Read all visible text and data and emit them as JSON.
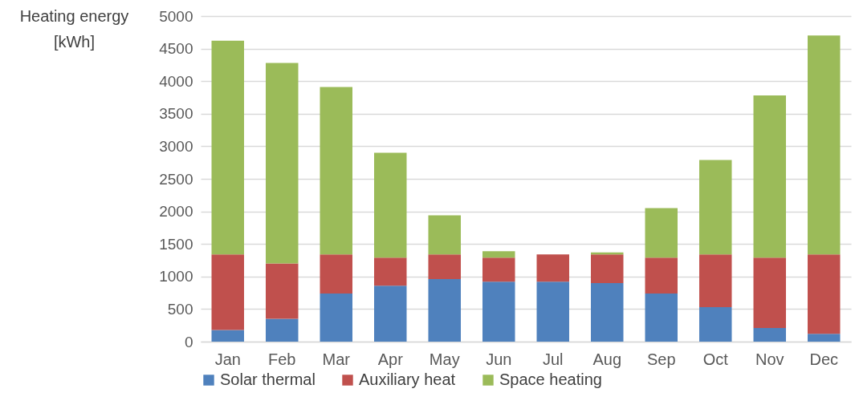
{
  "chart_data": {
    "type": "bar",
    "stacked": true,
    "ylabel": "Heating energy [kWh]",
    "categories": [
      "Jan",
      "Feb",
      "Mar",
      "Apr",
      "May",
      "Jun",
      "Jul",
      "Aug",
      "Sep",
      "Oct",
      "Nov",
      "Dec"
    ],
    "series": [
      {
        "name": "Solar thermal",
        "color": "#4f81bd",
        "values": [
          180,
          350,
          740,
          860,
          960,
          920,
          920,
          900,
          740,
          530,
          210,
          120
        ]
      },
      {
        "name": "Auxiliary heat",
        "color": "#c0504d",
        "values": [
          1160,
          850,
          600,
          430,
          380,
          370,
          420,
          440,
          550,
          810,
          1080,
          1220
        ]
      },
      {
        "name": "Space heating",
        "color": "#9bbb59",
        "values": [
          3280,
          3080,
          2570,
          1610,
          600,
          100,
          null,
          30,
          760,
          1450,
          2490,
          3360
        ]
      }
    ],
    "ylim": [
      0,
      5000
    ],
    "yticks": [
      0,
      500,
      1000,
      1500,
      2000,
      2500,
      3000,
      3500,
      4000,
      4500,
      5000
    ],
    "grid": "y",
    "legend": "bottom"
  }
}
